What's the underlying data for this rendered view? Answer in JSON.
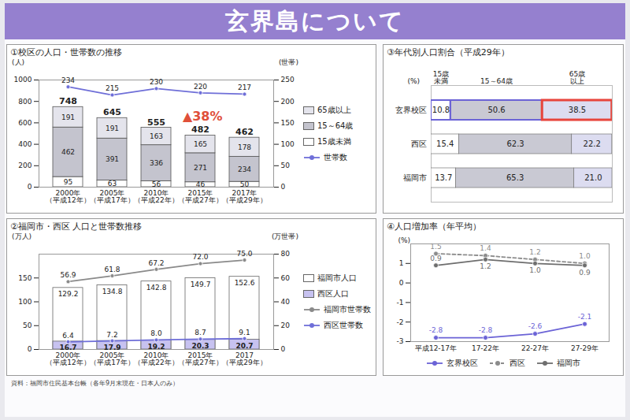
{
  "title": "玄界島について",
  "source": "資料：福岡市住民基本台帳（各年9月末現在・日本人のみ）",
  "chart_data": [
    {
      "type": "bar",
      "title": "①校区の人口・世帯数の推移",
      "stacked": true,
      "data_labels": true,
      "legend": "right",
      "categories": [
        "2000年（平成12年）",
        "2005年（平成17年）",
        "2010年（平成22年）",
        "2015年（平成27年）",
        "2017年（平成29年）"
      ],
      "series": [
        {
          "name": "15歳未満",
          "color": "#ffffff",
          "values": [
            95,
            63,
            56,
            46,
            50
          ]
        },
        {
          "name": "15～64歳",
          "color": "#c4c4ce",
          "values": [
            462,
            391,
            336,
            271,
            234
          ]
        },
        {
          "name": "65歳以上",
          "color": "#e4e4ec",
          "values": [
            191,
            191,
            163,
            165,
            178
          ]
        },
        {
          "name": "世帯数",
          "type": "line",
          "axis": "y2",
          "color": "#6f6fd8",
          "marker": "circle",
          "line_style": "solid",
          "values": [
            234,
            215,
            230,
            220,
            217
          ]
        }
      ],
      "totals": [
        748,
        645,
        555,
        482,
        462
      ],
      "annotation": "▲38%",
      "ylabel": "(人)",
      "ylim": [
        0,
        1000
      ],
      "yticks": [
        0,
        200,
        400,
        600,
        800,
        1000
      ],
      "y2label": "(世帯)",
      "y2lim": [
        0,
        250
      ],
      "y2ticks": [
        0,
        50,
        100,
        150,
        200,
        250
      ]
    },
    {
      "type": "bar",
      "title": "②福岡市・西区 人口と世帯数推移",
      "stacked": false,
      "data_labels": true,
      "legend": "right",
      "categories": [
        "2000年（平成12年）",
        "2005年（平成17年）",
        "2010年（平成22年）",
        "2015年（平成27年）",
        "2017（平成29年）"
      ],
      "series": [
        {
          "name": "福岡市人口",
          "color": "#ffffff",
          "values": [
            129.2,
            134.8,
            142.8,
            149.7,
            152.6
          ]
        },
        {
          "name": "西区人口",
          "color": "#c7c2f0",
          "values": [
            16.7,
            17.9,
            19.2,
            20.3,
            20.7
          ]
        },
        {
          "name": "福岡市世帯数",
          "type": "line",
          "axis": "y2",
          "color": "#8a8a8a",
          "marker": "circle",
          "line_style": "solid",
          "values": [
            56.9,
            61.8,
            67.2,
            72.0,
            75.0
          ],
          "value_labels": [
            "56.9",
            "61.8",
            "67.2",
            "72.0",
            "75.0"
          ]
        },
        {
          "name": "西区世帯数",
          "type": "line",
          "axis": "y2",
          "color": "#6f6fd8",
          "marker": "circle",
          "line_style": "solid",
          "values": [
            6.4,
            7.2,
            8.0,
            8.7,
            9.1
          ],
          "value_labels": [
            "6.4",
            "7.2",
            "8.0",
            "8.7",
            "9.1"
          ]
        }
      ],
      "ylabel": "(万人)",
      "ylim": [
        0,
        200
      ],
      "yticks": [
        0,
        50,
        100,
        150
      ],
      "y2label": "(万世帯)",
      "y2lim": [
        0,
        80
      ],
      "y2ticks": [
        0,
        20,
        40,
        60,
        80
      ]
    },
    {
      "type": "bar",
      "orientation": "horizontal",
      "stacked": true,
      "data_labels": true,
      "tick_labels": "y",
      "title": "③年代別人口割合（平成29年）",
      "xlabel": "(%)",
      "xlim": [
        0,
        100
      ],
      "xticks": [],
      "categories": [
        "玄界校区",
        "西区",
        "福岡市"
      ],
      "series": [
        {
          "name": "15歳未満",
          "color": "#ffffff",
          "values": [
            10.8,
            15.4,
            13.7
          ]
        },
        {
          "name": "15～64歳",
          "color": "#c9c9d3",
          "values": [
            50.6,
            62.3,
            65.3
          ]
        },
        {
          "name": "65歳以上",
          "color": "#dcdcf0",
          "values": [
            38.5,
            22.2,
            21.0
          ],
          "value_labels": [
            "38.5",
            "22.2",
            "21.0"
          ]
        }
      ]
    },
    {
      "type": "line",
      "title": "④人口増加率（年平均）",
      "data_labels": true,
      "legend": "bottom",
      "ylabel": "(%)",
      "ylim": [
        -3,
        2
      ],
      "yticks": [
        -3,
        -2,
        -1,
        0,
        1
      ],
      "categories": [
        "平成12-17年",
        "17-22年",
        "22-27年",
        "27-29年"
      ],
      "series": [
        {
          "name": "玄界校区",
          "color": "#6b63d6",
          "marker": "circle",
          "line_style": "solid",
          "values": [
            -2.8,
            -2.8,
            -2.6,
            -2.1
          ]
        },
        {
          "name": "西区",
          "color": "#8c8c8c",
          "marker": "circle",
          "line_style": "dashed",
          "values": [
            1.5,
            1.4,
            1.2,
            1.0
          ],
          "value_labels": [
            "1.5",
            "1.4",
            "1.2",
            "1.0"
          ]
        },
        {
          "name": "福岡市",
          "color": "#6e6e6e",
          "marker": "circle",
          "line_style": "solid",
          "values": [
            0.9,
            1.2,
            1.0,
            0.9
          ],
          "value_labels": [
            "0.9",
            "1.2",
            "1.0",
            "0.9"
          ]
        }
      ]
    }
  ]
}
